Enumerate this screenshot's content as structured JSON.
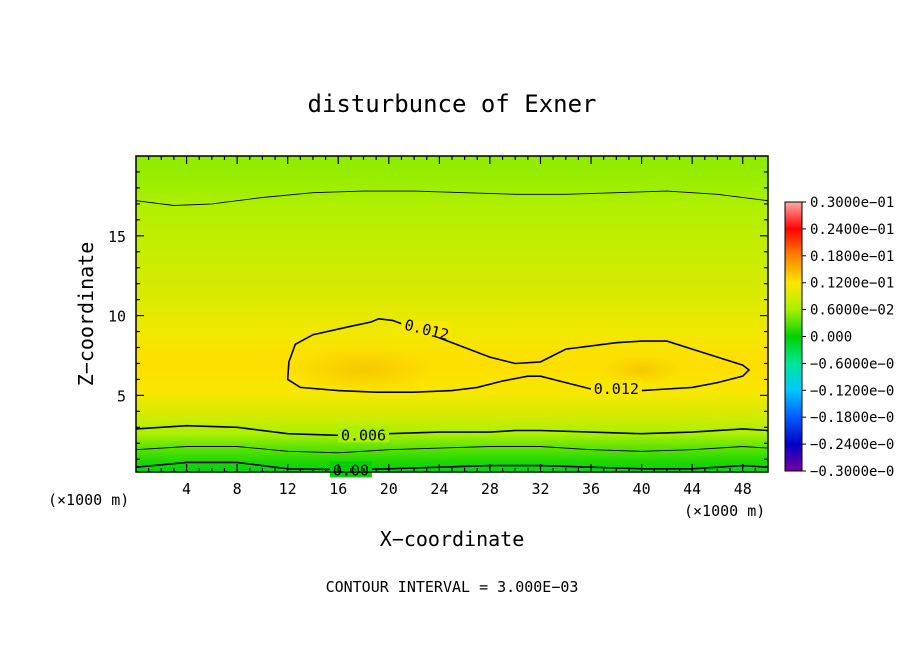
{
  "chart_data": {
    "type": "heatmap",
    "title": "disturbunce of Exner",
    "xlabel": "X−coordinate",
    "ylabel": "Z−coordinate",
    "x_unit": "(×1000 m)",
    "y_unit": "(×1000 m)",
    "xlim": [
      0,
      50
    ],
    "ylim": [
      0.2,
      20
    ],
    "x_ticks": [
      4,
      8,
      12,
      16,
      20,
      24,
      28,
      32,
      36,
      40,
      44,
      48
    ],
    "y_ticks": [
      5,
      10,
      15
    ],
    "x_tick_labels": [
      "4",
      "8",
      "12",
      "16",
      "20",
      "24",
      "28",
      "32",
      "36",
      "40",
      "44",
      "48"
    ],
    "y_tick_labels": [
      "5",
      "10",
      "15"
    ],
    "contour_interval_text": "CONTOUR INTERVAL = 3.000E−03",
    "contour_labels": [
      {
        "text": "0.012",
        "x": 23,
        "z": 9.1
      },
      {
        "text": "0.012",
        "x": 38,
        "z": 5.4
      },
      {
        "text": "0.006",
        "x": 18,
        "z": 2.5
      },
      {
        "text": "0.00",
        "x": 17,
        "z": 0.3
      }
    ],
    "colorbar": {
      "labels": [
        "0.3000e−01",
        "0.2400e−01",
        "0.1800e−01",
        "0.1200e−01",
        "0.6000e−02",
        "0.000",
        "−0.6000e−0",
        "−0.1200e−0",
        "−0.1800e−0",
        "−0.2400e−0",
        "−0.3000e−0"
      ],
      "range": [
        -0.03,
        0.03
      ]
    },
    "field": {
      "levels_z": [
        0.2,
        0.8,
        1.6,
        2.6,
        3.8,
        5.2,
        7.0,
        9.0,
        11.0,
        13.0,
        15.0,
        16.8,
        18.2,
        20.0
      ],
      "values": [
        -0.001,
        0.001,
        0.003,
        0.006,
        0.009,
        0.0115,
        0.0125,
        0.011,
        0.0095,
        0.0085,
        0.0075,
        0.0065,
        0.0055,
        0.005
      ]
    },
    "contours": [
      {
        "level": 0.012,
        "closed": true,
        "points": [
          [
            12.1,
            7.1
          ],
          [
            12.6,
            8.2
          ],
          [
            14.0,
            8.8
          ],
          [
            16.8,
            9.3
          ],
          [
            18.6,
            9.6
          ],
          [
            19.2,
            9.8
          ],
          [
            20.3,
            9.7
          ],
          [
            22.0,
            9.2
          ],
          [
            24.0,
            8.6
          ],
          [
            26.0,
            8.0
          ],
          [
            28.0,
            7.4
          ],
          [
            30.0,
            7.0
          ],
          [
            32.0,
            7.1
          ],
          [
            34.0,
            7.9
          ],
          [
            36.0,
            8.1
          ],
          [
            38.0,
            8.3
          ],
          [
            40.0,
            8.4
          ],
          [
            42.0,
            8.4
          ],
          [
            44.0,
            7.9
          ],
          [
            46.0,
            7.4
          ],
          [
            48.0,
            6.9
          ],
          [
            48.5,
            6.6
          ],
          [
            48.0,
            6.2
          ],
          [
            46.0,
            5.8
          ],
          [
            44.0,
            5.5
          ],
          [
            42.0,
            5.4
          ],
          [
            40.0,
            5.3
          ],
          [
            38.0,
            5.3
          ],
          [
            36.0,
            5.4
          ],
          [
            34.0,
            5.8
          ],
          [
            32.0,
            6.2
          ],
          [
            31.0,
            6.2
          ],
          [
            29.0,
            5.9
          ],
          [
            27.0,
            5.5
          ],
          [
            25.0,
            5.3
          ],
          [
            22.0,
            5.2
          ],
          [
            19.0,
            5.2
          ],
          [
            16.0,
            5.3
          ],
          [
            13.0,
            5.5
          ],
          [
            12.0,
            6.0
          ]
        ]
      },
      {
        "level": 0.006,
        "closed": false,
        "points": [
          [
            0,
            17.2
          ],
          [
            3,
            16.9
          ],
          [
            6,
            17.0
          ],
          [
            10,
            17.4
          ],
          [
            14,
            17.7
          ],
          [
            18,
            17.8
          ],
          [
            22,
            17.8
          ],
          [
            26,
            17.7
          ],
          [
            30,
            17.6
          ],
          [
            34,
            17.6
          ],
          [
            38,
            17.7
          ],
          [
            42,
            17.8
          ],
          [
            46,
            17.6
          ],
          [
            50,
            17.2
          ]
        ]
      },
      {
        "level": 0.006,
        "closed": false,
        "bold": true,
        "points": [
          [
            0,
            2.9
          ],
          [
            4,
            3.1
          ],
          [
            8,
            3.0
          ],
          [
            12,
            2.6
          ],
          [
            16,
            2.5
          ],
          [
            20,
            2.6
          ],
          [
            24,
            2.7
          ],
          [
            28,
            2.7
          ],
          [
            30,
            2.8
          ],
          [
            32,
            2.8
          ],
          [
            36,
            2.7
          ],
          [
            40,
            2.6
          ],
          [
            44,
            2.7
          ],
          [
            48,
            2.9
          ],
          [
            50,
            2.8
          ]
        ]
      },
      {
        "level": 0.003,
        "closed": false,
        "points": [
          [
            0,
            1.6
          ],
          [
            4,
            1.8
          ],
          [
            8,
            1.8
          ],
          [
            12,
            1.5
          ],
          [
            16,
            1.4
          ],
          [
            20,
            1.6
          ],
          [
            24,
            1.7
          ],
          [
            28,
            1.8
          ],
          [
            32,
            1.8
          ],
          [
            36,
            1.6
          ],
          [
            40,
            1.5
          ],
          [
            44,
            1.6
          ],
          [
            48,
            1.8
          ],
          [
            50,
            1.7
          ]
        ]
      },
      {
        "level": 0.0,
        "closed": false,
        "bold": true,
        "points": [
          [
            0,
            0.5
          ],
          [
            4,
            0.8
          ],
          [
            8,
            0.8
          ],
          [
            12,
            0.4
          ],
          [
            16,
            0.35
          ],
          [
            20,
            0.4
          ],
          [
            24,
            0.5
          ],
          [
            28,
            0.6
          ],
          [
            32,
            0.6
          ],
          [
            36,
            0.5
          ],
          [
            40,
            0.4
          ],
          [
            44,
            0.4
          ],
          [
            48,
            0.6
          ],
          [
            50,
            0.5
          ]
        ]
      }
    ],
    "grid": false,
    "legend_position": "right"
  }
}
